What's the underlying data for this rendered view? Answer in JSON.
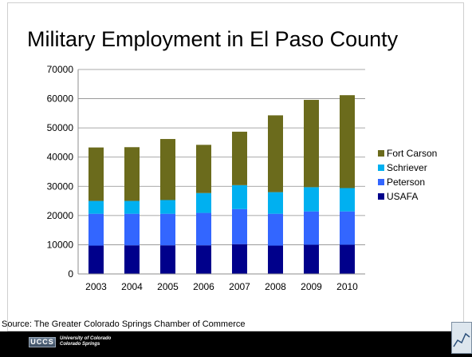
{
  "slide": {
    "title": "Military Employment in El Paso County",
    "source": "Source: The Greater Colorado Springs Chamber of Commerce",
    "logo": {
      "mark": "UCCS",
      "line1": "University of Colorado",
      "line2": "Colorado Springs"
    },
    "corner_icon": "chart-thumbnail-icon"
  },
  "chart_data": {
    "type": "bar",
    "stacked": true,
    "title": "",
    "xlabel": "",
    "ylabel": "",
    "categories": [
      "2003",
      "2004",
      "2005",
      "2006",
      "2007",
      "2008",
      "2009",
      "2010"
    ],
    "ylim": [
      0,
      70000
    ],
    "yticks": [
      0,
      10000,
      20000,
      30000,
      40000,
      50000,
      60000,
      70000
    ],
    "grid": true,
    "legend_position": "right",
    "series": [
      {
        "name": "USAFA",
        "color": "#00008b",
        "values": [
          9700,
          9800,
          9800,
          9800,
          10200,
          9700,
          10000,
          10000
        ]
      },
      {
        "name": "Peterson",
        "color": "#3366ff",
        "values": [
          10900,
          10800,
          10800,
          11100,
          12000,
          10900,
          11400,
          11400
        ]
      },
      {
        "name": "Schriever",
        "color": "#00b0f0",
        "values": [
          4400,
          4400,
          4700,
          6800,
          8200,
          7400,
          8300,
          8000
        ]
      },
      {
        "name": "Fort Carson",
        "color": "#6b6b1c",
        "values": [
          18300,
          18400,
          20900,
          16500,
          18300,
          26300,
          29900,
          31800
        ]
      }
    ],
    "legend_order": [
      "Fort Carson",
      "Schriever",
      "Peterson",
      "USAFA"
    ]
  }
}
